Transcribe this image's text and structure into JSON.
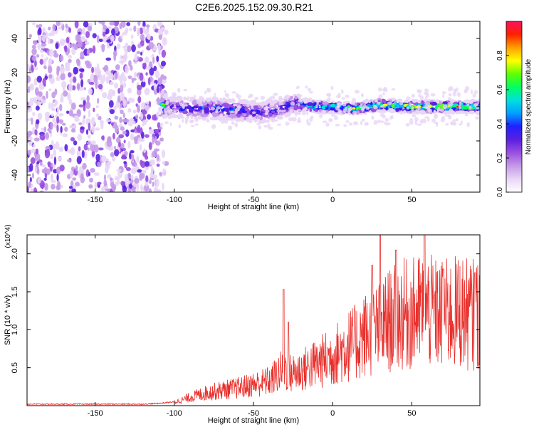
{
  "title": "C2E6.2025.152.09.30.R21",
  "chart_data": [
    {
      "type": "heatmap",
      "title": "C2E6.2025.152.09.30.R21",
      "xlabel": "Height of straight line (km)",
      "ylabel": "Frequency (Hz)",
      "xlim": [
        -193,
        93
      ],
      "ylim": [
        -50,
        50
      ],
      "xticks": [
        -150,
        -100,
        -50,
        0,
        50
      ],
      "yticks": [
        -40,
        -20,
        0,
        20,
        40
      ],
      "colorbar": {
        "label": "Normalized spectral amplitude",
        "range": [
          0,
          1
        ],
        "ticks": [
          "0.0",
          "0.2",
          "0.4",
          "0.6",
          "0.8"
        ],
        "colors": [
          "#ffffff",
          "#e8d6f6",
          "#c49ae8",
          "#9a4fe0",
          "#5a20e0",
          "#2020ff",
          "#00a0ff",
          "#00e0e0",
          "#00ff60",
          "#60ff00",
          "#ffff00",
          "#ffa000",
          "#ff2000",
          "#ff1060"
        ]
      },
      "ridge": [
        {
          "x": -105,
          "f": 0.0,
          "amp": 0.35
        },
        {
          "x": -90,
          "f": -1.0,
          "amp": 0.4
        },
        {
          "x": -75,
          "f": -1.0,
          "amp": 0.45
        },
        {
          "x": -60,
          "f": -2.0,
          "amp": 0.45
        },
        {
          "x": -45,
          "f": -3.0,
          "amp": 0.4
        },
        {
          "x": -35,
          "f": -2.0,
          "amp": 0.4
        },
        {
          "x": -25,
          "f": 2.0,
          "amp": 0.5
        },
        {
          "x": -10,
          "f": 0.0,
          "amp": 0.6
        },
        {
          "x": 0,
          "f": 0.0,
          "amp": 0.65
        },
        {
          "x": 15,
          "f": -1.0,
          "amp": 0.7
        },
        {
          "x": 30,
          "f": 1.0,
          "amp": 0.75
        },
        {
          "x": 50,
          "f": 0.0,
          "amp": 0.8
        },
        {
          "x": 70,
          "f": 0.0,
          "amp": 0.85
        },
        {
          "x": 90,
          "f": 0.0,
          "amp": 0.85
        }
      ]
    },
    {
      "type": "line",
      "xlabel": "Height of straight line (km)",
      "ylabel": "SNR (10 * v/v)",
      "y_multiplier": "(x10^4)",
      "xlim": [
        -193,
        93
      ],
      "ylim": [
        0,
        2.25
      ],
      "xticks": [
        -150,
        -100,
        -50,
        0,
        50
      ],
      "yticks": [
        "0.5",
        "1.0",
        "1.5",
        "2.0"
      ],
      "series": [
        {
          "color": "#e8302c",
          "x": [
            -193,
            -170,
            -150,
            -120,
            -110,
            -100,
            -95,
            -90,
            -80,
            -70,
            -60,
            -50,
            -40,
            -32,
            -30,
            -28,
            -20,
            -10,
            0,
            10,
            15,
            20,
            30,
            35,
            40,
            45,
            50,
            55,
            60,
            65,
            70,
            75,
            80,
            85,
            90,
            93
          ],
          "y": [
            0.02,
            0.02,
            0.02,
            0.02,
            0.03,
            0.05,
            0.08,
            0.12,
            0.18,
            0.22,
            0.25,
            0.3,
            0.35,
            0.5,
            0.55,
            0.45,
            0.5,
            0.6,
            0.7,
            0.85,
            0.9,
            1.0,
            1.1,
            1.2,
            1.25,
            1.3,
            1.3,
            1.35,
            1.35,
            1.3,
            1.3,
            1.3,
            1.35,
            1.3,
            1.3,
            1.3
          ],
          "peaks": [
            {
              "x": -31,
              "y": 1.53
            },
            {
              "x": -28,
              "y": 1.1
            },
            {
              "x": 25,
              "y": 1.85
            },
            {
              "x": 30,
              "y": 2.25
            },
            {
              "x": 40,
              "y": 2.05
            },
            {
              "x": 58,
              "y": 2.25
            },
            {
              "x": 70,
              "y": 1.8
            },
            {
              "x": 90,
              "y": 1.75
            }
          ]
        }
      ]
    }
  ]
}
